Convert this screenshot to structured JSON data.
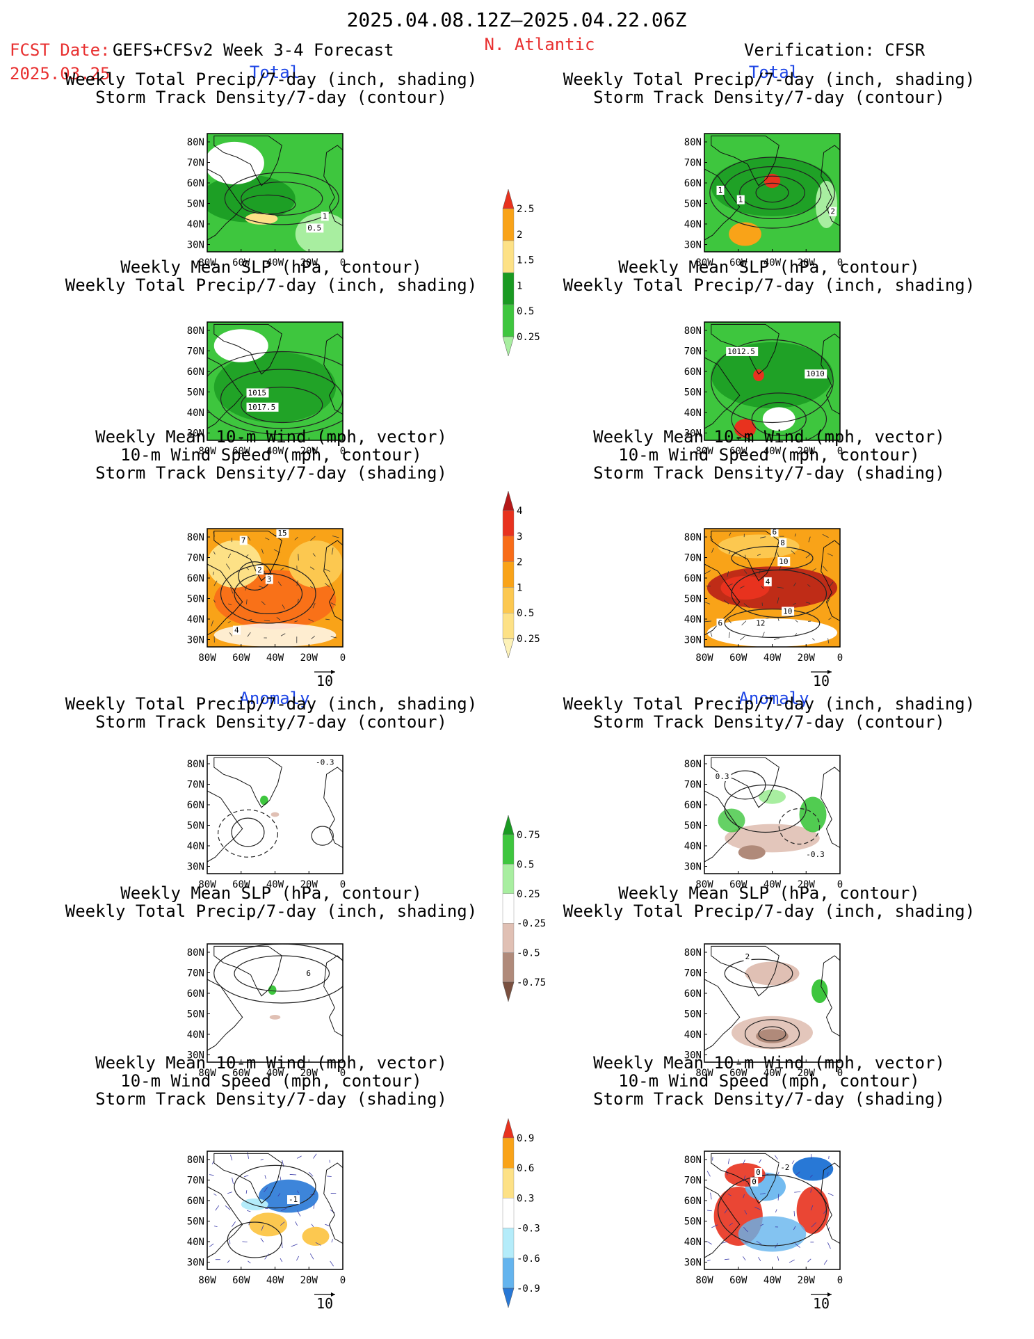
{
  "header": {
    "period": "2025.04.08.12Z–2025.04.22.06Z",
    "fcst_label": "FCST Date:",
    "fcst_date": "2025.03.25",
    "model": "GEFS+CFSv2 Week 3-4 Forecast",
    "region": "N. Atlantic",
    "verification": "Verification: CFSR"
  },
  "sections": {
    "total": "Total",
    "anomaly": "Anomaly"
  },
  "titles": {
    "precip_storm": [
      "Weekly Total Precip/7-day (inch, shading)",
      "Storm Track Density/7-day (contour)"
    ],
    "slp_precip": [
      "Weekly Mean SLP (hPa, contour)",
      "Weekly Total Precip/7-day (inch, shading)"
    ],
    "wind_storm": [
      "Weekly Mean 10-m Wind (mph, vector)",
      "10-m Wind Speed (mph, contour)",
      "Storm Track Density/7-day (shading)"
    ]
  },
  "axes": {
    "lat": [
      "80N",
      "70N",
      "60N",
      "50N",
      "40N",
      "30N"
    ],
    "lon": [
      "80W",
      "60W",
      "40W",
      "20W",
      "0"
    ]
  },
  "vector_ref": "10",
  "colorbars": {
    "precip_total": {
      "levels": [
        "2.5",
        "2",
        "1.5",
        "1",
        "0.5",
        "0.25"
      ],
      "colors": [
        "#e8321e",
        "#f9a318",
        "#fde186",
        "#1a9a22",
        "#3ec63e",
        "#a8eea0"
      ]
    },
    "storm_total": {
      "levels": [
        "4",
        "3",
        "2",
        "1",
        "0.5",
        "0.25"
      ],
      "colors": [
        "#b51818",
        "#e8321e",
        "#f86c18",
        "#f9a318",
        "#fcc850",
        "#fde186",
        "#fdf2b8"
      ]
    },
    "precip_anom": {
      "levels": [
        "0.75",
        "0.5",
        "0.25",
        "-0.25",
        "-0.5",
        "-0.75"
      ],
      "colors": [
        "#1a9a22",
        "#3ec63e",
        "#a8eea0",
        "#ffffff",
        "#e0c0b4",
        "#b08a7a",
        "#7a5040"
      ]
    },
    "storm_anom": {
      "levels": [
        "0.9",
        "0.6",
        "0.3",
        "-0.3",
        "-0.6",
        "-0.9"
      ],
      "colors": [
        "#e8321e",
        "#f9a318",
        "#fde186",
        "#ffffff",
        "#b4ecfa",
        "#64b4ee",
        "#2878d6"
      ]
    }
  },
  "contour_labels": {
    "p1": [
      "1",
      "0.5"
    ],
    "p2": [
      "1",
      "1",
      "2"
    ],
    "p3": [
      "1015",
      "1017.5"
    ],
    "p4": [
      "1012.5",
      "1010"
    ],
    "p5": [
      "15",
      "7",
      "2",
      "3",
      "4"
    ],
    "p6": [
      "6",
      "8",
      "10",
      "4",
      "10",
      "12",
      "6"
    ],
    "p7": [
      "-0.3"
    ],
    "p8": [
      "0.3",
      "-0.3"
    ],
    "p9": [
      "6"
    ],
    "p10": [
      "2"
    ],
    "p11": [
      "-1"
    ],
    "p12": [
      "0",
      "0",
      "-2"
    ]
  }
}
